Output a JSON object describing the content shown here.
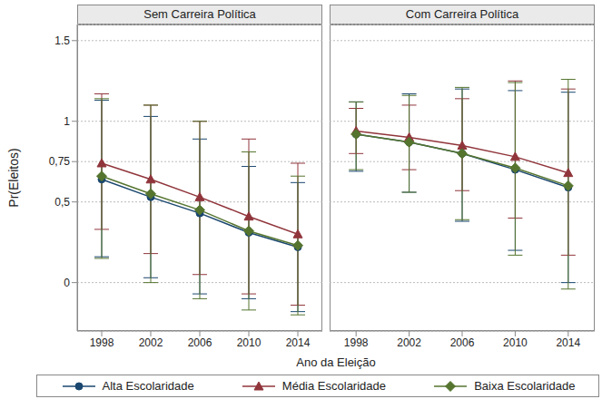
{
  "chart_data": [
    {
      "type": "line",
      "title": "Sem Carreira Política",
      "ylabel": "Pr(Eleitos)",
      "xlabel": "Ano da Eleição",
      "x": [
        1998,
        2002,
        2006,
        2010,
        2014
      ],
      "xlim": [
        1996,
        2016
      ],
      "xticks": [
        1998,
        2002,
        2006,
        2010,
        2014
      ],
      "ylim": [
        -0.3,
        1.6
      ],
      "yticks": [
        0,
        {
          "value": 0.5,
          "label": "0,5"
        },
        {
          "value": 0.75,
          "label": "0,75"
        },
        1,
        1.5
      ],
      "grid": true,
      "legend": "bottom",
      "series": [
        {
          "name": "Alta Escolaridade",
          "color": "#1a476f",
          "marker": "circle",
          "values": [
            0.64,
            0.53,
            0.43,
            0.31,
            0.22
          ],
          "ci_low": [
            0.16,
            0.03,
            -0.07,
            -0.1,
            -0.18
          ],
          "ci_high": [
            1.13,
            1.03,
            0.89,
            0.72,
            0.62
          ]
        },
        {
          "name": "Média Escolaridade",
          "color": "#90353b",
          "marker": "triangle",
          "values": [
            0.74,
            0.64,
            0.53,
            0.41,
            0.3
          ],
          "ci_low": [
            0.33,
            0.18,
            0.05,
            -0.07,
            -0.14
          ],
          "ci_high": [
            1.17,
            1.1,
            1.0,
            0.89,
            0.74
          ]
        },
        {
          "name": "Baixa Escolaridade",
          "color": "#55752f",
          "marker": "diamond",
          "values": [
            0.66,
            0.55,
            0.45,
            0.32,
            0.23
          ],
          "ci_low": [
            0.15,
            0.0,
            -0.1,
            -0.17,
            -0.2
          ],
          "ci_high": [
            1.14,
            1.1,
            1.0,
            0.81,
            0.66
          ]
        }
      ]
    },
    {
      "type": "line",
      "title": "Com Carreira Política",
      "tick_labels": "x",
      "x": [
        1998,
        2002,
        2006,
        2010,
        2014
      ],
      "xlim": [
        1996,
        2016
      ],
      "xticks": [
        1998,
        2002,
        2006,
        2010,
        2014
      ],
      "ylim": [
        -0.3,
        1.6
      ],
      "yticks": [
        0,
        {
          "value": 0.5,
          "label": "0,5"
        },
        {
          "value": 0.75,
          "label": "0,75"
        },
        1,
        1.5
      ],
      "grid": true,
      "series": [
        {
          "name": "Alta Escolaridade",
          "color": "#1a476f",
          "marker": "circle",
          "values": [
            0.92,
            0.87,
            0.8,
            0.7,
            0.59
          ],
          "ci_low": [
            0.69,
            0.56,
            0.38,
            0.2,
            0.0
          ],
          "ci_high": [
            1.12,
            1.17,
            1.2,
            1.19,
            1.18
          ]
        },
        {
          "name": "Média Escolaridade",
          "color": "#90353b",
          "marker": "triangle",
          "values": [
            0.94,
            0.9,
            0.85,
            0.78,
            0.68
          ],
          "ci_low": [
            0.8,
            0.7,
            0.57,
            0.4,
            0.17
          ],
          "ci_high": [
            1.08,
            1.1,
            1.14,
            1.25,
            1.2
          ]
        },
        {
          "name": "Baixa Escolaridade",
          "color": "#55752f",
          "marker": "diamond",
          "values": [
            0.92,
            0.87,
            0.8,
            0.71,
            0.6
          ],
          "ci_low": [
            0.7,
            0.56,
            0.39,
            0.17,
            -0.04
          ],
          "ci_high": [
            1.12,
            1.16,
            1.21,
            1.24,
            1.26
          ]
        }
      ]
    }
  ]
}
